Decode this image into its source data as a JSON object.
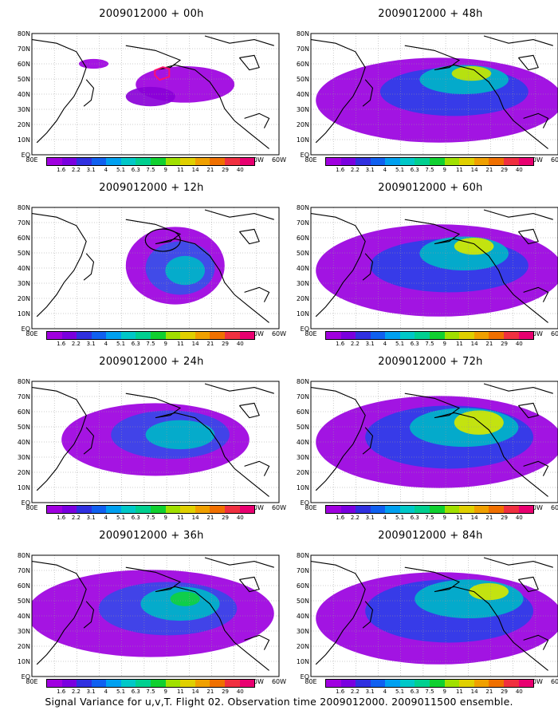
{
  "panels": [
    {
      "title": "2009012000 + 00h",
      "fill": [
        [
          0.62,
          0.42,
          0.2,
          0.15,
          "#9d00e0"
        ],
        [
          0.48,
          0.52,
          0.1,
          0.08,
          "#8a00d8"
        ],
        [
          0.25,
          0.25,
          0.06,
          0.04,
          "#9d00e0"
        ]
      ],
      "marker": "hexagon"
    },
    {
      "title": "2009012000 + 48h",
      "fill": [
        [
          0.52,
          0.55,
          0.5,
          0.35,
          "#9a00e0"
        ],
        [
          0.58,
          0.48,
          0.3,
          0.2,
          "#2e3fe8"
        ],
        [
          0.62,
          0.38,
          0.18,
          0.12,
          "#00b4c8"
        ],
        [
          0.65,
          0.33,
          0.08,
          0.06,
          "#c6e600"
        ]
      ]
    },
    {
      "title": "2009012000 + 12h",
      "fill": [
        [
          0.58,
          0.48,
          0.2,
          0.32,
          "#9d00e0"
        ],
        [
          0.6,
          0.5,
          0.14,
          0.22,
          "#3850e8"
        ],
        [
          0.62,
          0.52,
          0.08,
          0.12,
          "#00b4c8"
        ]
      ],
      "marker": "ellipse"
    },
    {
      "title": "2009012000 + 60h",
      "fill": [
        [
          0.52,
          0.52,
          0.5,
          0.38,
          "#9a00e0"
        ],
        [
          0.56,
          0.48,
          0.32,
          0.22,
          "#2e3fe8"
        ],
        [
          0.62,
          0.38,
          0.18,
          0.14,
          "#00b4c8"
        ],
        [
          0.66,
          0.32,
          0.08,
          0.07,
          "#d4e800"
        ]
      ]
    },
    {
      "title": "2009012000 + 24h",
      "fill": [
        [
          0.5,
          0.48,
          0.38,
          0.3,
          "#9d00e0"
        ],
        [
          0.56,
          0.44,
          0.24,
          0.2,
          "#3848e8"
        ],
        [
          0.6,
          0.44,
          0.14,
          0.12,
          "#00b4c8"
        ]
      ]
    },
    {
      "title": "2009012000 + 72h",
      "fill": [
        [
          0.52,
          0.5,
          0.5,
          0.38,
          "#9a00e0"
        ],
        [
          0.56,
          0.46,
          0.34,
          0.26,
          "#2e3fe8"
        ],
        [
          0.62,
          0.38,
          0.22,
          0.16,
          "#00b4c8"
        ],
        [
          0.68,
          0.34,
          0.1,
          0.1,
          "#d4e800"
        ]
      ]
    },
    {
      "title": "2009012000 + 36h",
      "fill": [
        [
          0.48,
          0.48,
          0.5,
          0.36,
          "#9d00e0"
        ],
        [
          0.55,
          0.44,
          0.28,
          0.22,
          "#3848e8"
        ],
        [
          0.6,
          0.4,
          0.16,
          0.14,
          "#00b4c8"
        ],
        [
          0.62,
          0.36,
          0.06,
          0.06,
          "#10d040"
        ]
      ]
    },
    {
      "title": "2009012000 + 84h",
      "fill": [
        [
          0.52,
          0.52,
          0.5,
          0.38,
          "#9a00e0"
        ],
        [
          0.56,
          0.46,
          0.34,
          0.26,
          "#2e3fe8"
        ],
        [
          0.64,
          0.36,
          0.22,
          0.16,
          "#00b4c8"
        ],
        [
          0.72,
          0.3,
          0.08,
          0.07,
          "#d4e800"
        ]
      ]
    }
  ],
  "lon_labels": [
    "80E",
    "100E",
    "120E",
    "140E",
    "160E",
    "180",
    "160W",
    "140W",
    "120W",
    "100W",
    "80W",
    "60W"
  ],
  "lat_labels": [
    "80N",
    "70N",
    "60N",
    "50N",
    "40N",
    "30N",
    "20N",
    "10N",
    "EQ"
  ],
  "colorbar": {
    "colors": [
      "#a000e0",
      "#7a00e0",
      "#3030e0",
      "#1060f0",
      "#00a0f0",
      "#00c8c8",
      "#00d090",
      "#10d030",
      "#a0e000",
      "#e0d000",
      "#f0a000",
      "#f07000",
      "#f03040",
      "#e80070"
    ],
    "labels": [
      "1.6",
      "2.2",
      "3.1",
      "4",
      "5.1",
      "6.3",
      "7.5",
      "9",
      "11",
      "14",
      "21",
      "29",
      "40"
    ]
  },
  "footer": "Signal Variance for u,v,T. Flight 02. Observation time 2009012000. 2009011500 ensemble."
}
